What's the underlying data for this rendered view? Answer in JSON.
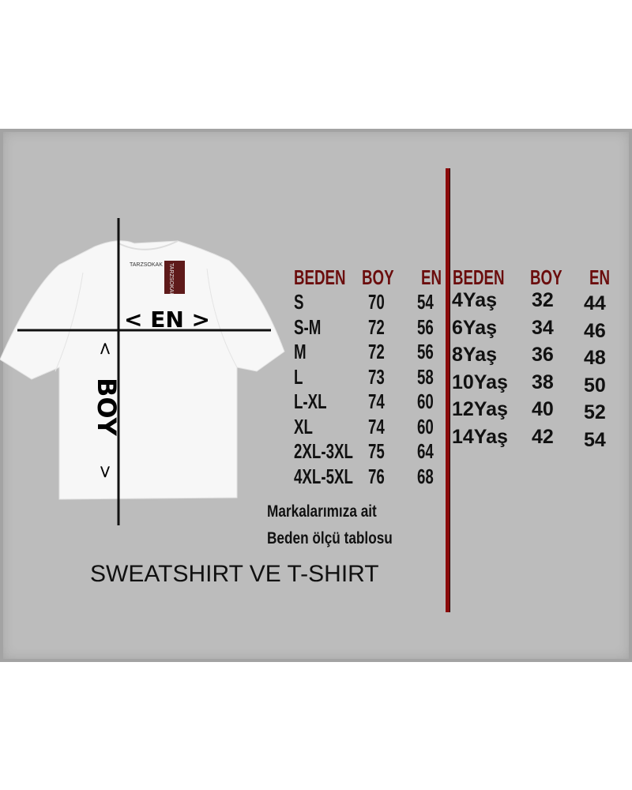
{
  "shirt": {
    "brand_label": "TARZSOKAK",
    "tag_label": "TARZSOKAK",
    "width_label": "< EN >",
    "length_label": "BOY",
    "length_arrow_top": "<",
    "length_arrow_bottom": ">"
  },
  "adult_table": {
    "headers": [
      "BEDEN",
      "BOY",
      "EN"
    ],
    "rows": [
      [
        "S",
        "70",
        "54"
      ],
      [
        "S-M",
        "72",
        "56"
      ],
      [
        "M",
        "72",
        "56"
      ],
      [
        "L",
        "73",
        "58"
      ],
      [
        "L-XL",
        "74",
        "60"
      ],
      [
        "XL",
        "74",
        "60"
      ],
      [
        "2XL-3XL",
        "75",
        "64"
      ],
      [
        "4XL-5XL",
        "76",
        "68"
      ]
    ]
  },
  "kids_table": {
    "headers": [
      "BEDEN",
      "BOY",
      "EN"
    ],
    "rows": [
      [
        "4Yaş",
        "32",
        "44"
      ],
      [
        "6Yaş",
        "34",
        "46"
      ],
      [
        "8Yaş",
        "36",
        "48"
      ],
      [
        "10Yaş",
        "38",
        "50"
      ],
      [
        "12Yaş",
        "40",
        "52"
      ],
      [
        "14Yaş",
        "42",
        "54"
      ]
    ]
  },
  "note_line1": "Markalarımıza ait",
  "note_line2": "Beden ölçü tablosu",
  "footer_title": "SWEATSHIRT VE T-SHIRT",
  "colors": {
    "header": "#6b0d0d",
    "divider": "#8b0a0a",
    "panel": "#bcbcbc"
  }
}
